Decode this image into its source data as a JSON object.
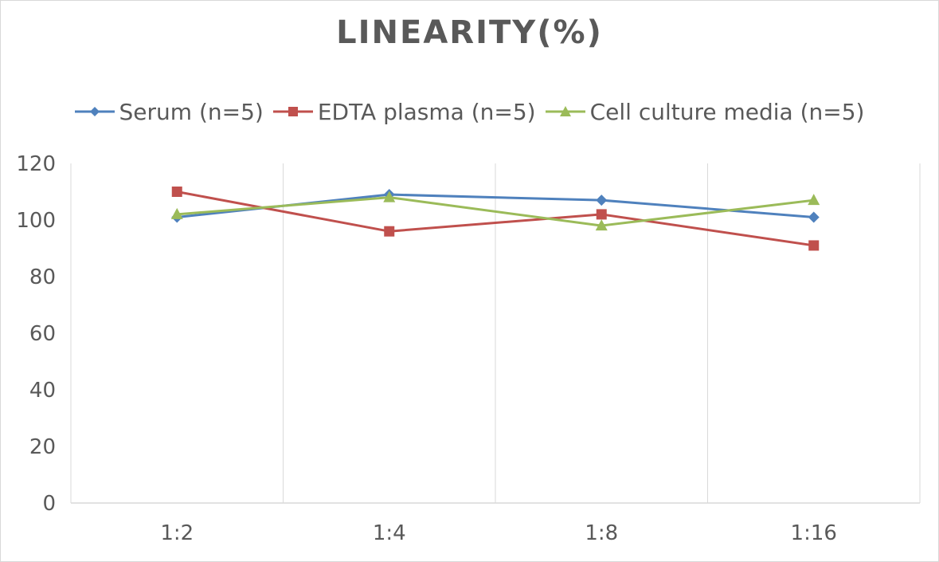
{
  "chart_data": {
    "type": "line",
    "title": "LINEARITY(%)",
    "xlabel": "",
    "ylabel": "",
    "categories": [
      "1:2",
      "1:4",
      "1:8",
      "1:16"
    ],
    "ylim": [
      0,
      120
    ],
    "yticks": [
      0,
      20,
      40,
      60,
      80,
      100,
      120
    ],
    "grid": "vertical",
    "legend_position": "top",
    "series": [
      {
        "name": "Serum (n=5)",
        "values": [
          101,
          109,
          107,
          101
        ],
        "color": "#4f81bd",
        "marker": "diamond"
      },
      {
        "name": "EDTA plasma (n=5)",
        "values": [
          110,
          96,
          102,
          91
        ],
        "color": "#c0504d",
        "marker": "square"
      },
      {
        "name": "Cell culture media (n=5)",
        "values": [
          102,
          108,
          98,
          107
        ],
        "color": "#9bbb59",
        "marker": "triangle"
      }
    ]
  }
}
